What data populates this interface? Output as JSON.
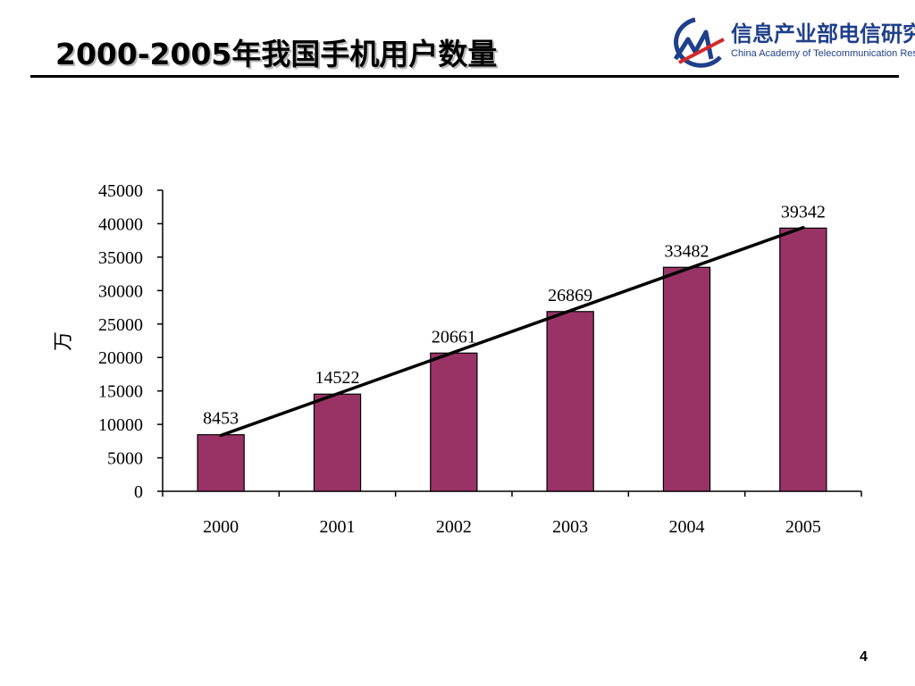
{
  "slide": {
    "title": "2000-2005年我国手机用户数量",
    "page_number": "4"
  },
  "logo": {
    "name_cn": "信息产业部电信研究院",
    "name_en": "China Academy of Telecommunication Research",
    "colors": {
      "blue": "#1f3f8a",
      "red": "#d62828"
    }
  },
  "chart_data": {
    "type": "bar",
    "title": "",
    "xlabel": "",
    "ylabel": "万",
    "categories": [
      "2000",
      "2001",
      "2002",
      "2003",
      "2004",
      "2005"
    ],
    "values": [
      8453,
      14522,
      20661,
      26869,
      33482,
      39342
    ],
    "data_labels": [
      "8453",
      "14522",
      "20661",
      "26869",
      "33482",
      "39342"
    ],
    "yticks": [
      "0",
      "5000",
      "10000",
      "15000",
      "20000",
      "25000",
      "30000",
      "35000",
      "40000",
      "45000"
    ],
    "ylim": [
      0,
      45000
    ],
    "trendline": "linear",
    "grid": false,
    "legend": "none",
    "bar_color": "#993366",
    "trend_color": "#000000"
  }
}
